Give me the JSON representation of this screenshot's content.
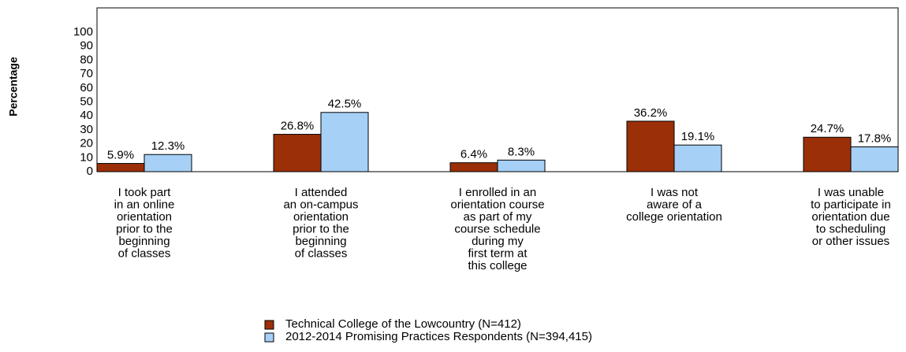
{
  "chart_data": {
    "type": "bar",
    "ylabel": "Percentage",
    "categories": [
      [
        "I took part",
        "in an online",
        "orientation",
        "prior to the",
        "beginning",
        "of classes"
      ],
      [
        "I attended",
        "an on-campus",
        "orientation",
        "prior to the",
        "beginning",
        "of classes"
      ],
      [
        "I enrolled in an",
        "orientation course",
        "as part of my",
        "course schedule",
        "during my",
        "first term at",
        "this college"
      ],
      [
        "I was not",
        "aware of a",
        "college orientation"
      ],
      [
        "I was unable",
        "to participate in",
        "orientation due",
        "to scheduling",
        "or other issues"
      ]
    ],
    "series": [
      {
        "name": "Technical College of the Lowcountry (N=412)",
        "color": "#9b2f08",
        "values": [
          5.9,
          26.8,
          6.4,
          36.2,
          24.7
        ],
        "value_labels": [
          "5.9%",
          "26.8%",
          "6.4%",
          "36.2%",
          "24.7%"
        ]
      },
      {
        "name": "2012-2014 Promising Practices Respondents (N=394,415)",
        "color": "#a6d0f6",
        "values": [
          12.3,
          42.5,
          8.3,
          19.1,
          17.8
        ],
        "value_labels": [
          "12.3%",
          "42.5%",
          "8.3%",
          "19.1%",
          "17.8%"
        ]
      }
    ],
    "ylim": [
      0,
      117.5
    ],
    "yticks": [
      0,
      10,
      20,
      30,
      40,
      50,
      60,
      70,
      80,
      90,
      100
    ],
    "grid": false
  }
}
